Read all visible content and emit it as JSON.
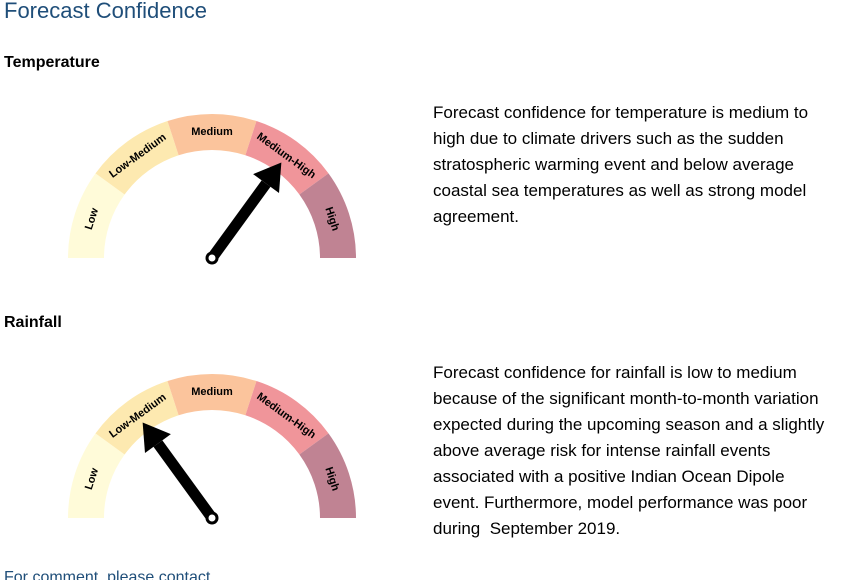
{
  "header": {
    "title": "Forecast Confidence"
  },
  "segment_colors": [
    "#fffbd9",
    "#fde9b0",
    "#fbc49c",
    "#f0959a",
    "#c08393"
  ],
  "sections": [
    {
      "heading": "Temperature",
      "gauge": {
        "labels": [
          "Low",
          "Low-Medium",
          "Medium",
          "Medium-High",
          "High"
        ],
        "level": 3
      },
      "text": "Forecast confidence for temperature is medium to high due to climate drivers such as the sudden stratospheric warming event and below average coastal sea temperatures as well as strong model agreement."
    },
    {
      "heading": "Rainfall",
      "gauge": {
        "labels": [
          "Low",
          "Low-Medium",
          "Medium",
          "Medium-High",
          "High"
        ],
        "level": 1
      },
      "text": "Forecast confidence for rainfall is low to medium because of the significant month-to-month variation expected during the upcoming season and a slightly above average risk for intense rainfall events associated with a positive Indian Ocean Dipole event. Furthermore, model performance was poor during  September 2019."
    }
  ],
  "footer": {
    "text": "For comment, please contact"
  }
}
